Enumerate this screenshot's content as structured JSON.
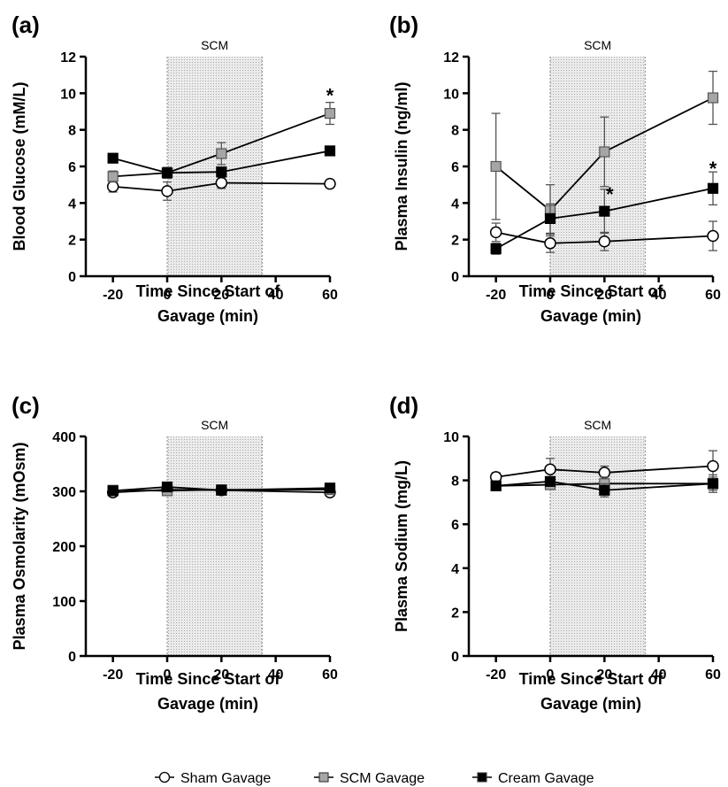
{
  "chart_data": [
    {
      "panel": "(a)",
      "type": "line",
      "ylabel": "Blood Glucose (mM/L)",
      "xlabel": [
        "Time Since Start of",
        "Gavage (min)"
      ],
      "xlim": [
        -30,
        60
      ],
      "ylim": [
        0,
        12
      ],
      "xticks": [
        -20,
        0,
        20,
        40,
        60
      ],
      "yticks": [
        0,
        2,
        4,
        6,
        8,
        10,
        12
      ],
      "shaded_region": {
        "label": "SCM",
        "x": [
          0,
          35
        ]
      },
      "x": [
        -20,
        0,
        20,
        60
      ],
      "series": [
        {
          "name": "Sham Gavage",
          "values": [
            4.9,
            4.65,
            5.1,
            5.05
          ],
          "err": [
            0.3,
            0.5,
            0.3,
            0.2
          ]
        },
        {
          "name": "SCM Gavage",
          "values": [
            5.45,
            5.65,
            6.7,
            8.9
          ],
          "err": [
            0.3,
            0.3,
            0.6,
            0.6
          ]
        },
        {
          "name": "Cream Gavage",
          "values": [
            6.45,
            5.65,
            5.7,
            6.85
          ],
          "err": [
            0.2,
            0.2,
            0.2,
            0.2
          ]
        }
      ],
      "annotations": [
        {
          "text": "*",
          "x": 60,
          "y": 9.9
        }
      ]
    },
    {
      "panel": "(b)",
      "type": "line",
      "ylabel": "Plasma Insulin (ng/ml)",
      "xlabel": [
        "Time Since Start of",
        "Gavage (min)"
      ],
      "xlim": [
        -30,
        60
      ],
      "ylim": [
        0,
        12
      ],
      "xticks": [
        -20,
        0,
        20,
        40,
        60
      ],
      "yticks": [
        0,
        2,
        4,
        6,
        8,
        10,
        12
      ],
      "shaded_region": {
        "label": "SCM",
        "x": [
          0,
          35
        ]
      },
      "x": [
        -20,
        0,
        20,
        60
      ],
      "series": [
        {
          "name": "Sham Gavage",
          "values": [
            2.4,
            1.8,
            1.9,
            2.2
          ],
          "err": [
            0.5,
            0.5,
            0.5,
            0.8
          ]
        },
        {
          "name": "SCM Gavage",
          "values": [
            6.0,
            3.6,
            6.8,
            9.75
          ],
          "err": [
            2.9,
            1.4,
            1.9,
            1.45
          ]
        },
        {
          "name": "Cream Gavage",
          "values": [
            1.5,
            3.15,
            3.55,
            4.8
          ],
          "err": [
            0.3,
            0.8,
            1.2,
            0.9
          ]
        }
      ],
      "annotations": [
        {
          "text": "*",
          "x": 22,
          "y": 4.5
        },
        {
          "text": "*",
          "x": 60,
          "y": 5.9
        }
      ]
    },
    {
      "panel": "(c)",
      "type": "line",
      "ylabel": "Plasma Osmolarity (mOsm)",
      "xlabel": [
        "Time Since Start of",
        "Gavage (min)"
      ],
      "xlim": [
        -30,
        60
      ],
      "ylim": [
        0,
        400
      ],
      "xticks": [
        -20,
        0,
        20,
        40,
        60
      ],
      "yticks": [
        0,
        100,
        200,
        300,
        400
      ],
      "shaded_region": {
        "label": "SCM",
        "x": [
          0,
          35
        ]
      },
      "x": [
        -20,
        0,
        20,
        60
      ],
      "series": [
        {
          "name": "Sham Gavage",
          "values": [
            298,
            303,
            302,
            298
          ],
          "err": [
            4,
            4,
            4,
            4
          ]
        },
        {
          "name": "SCM Gavage",
          "values": [
            302,
            301,
            303,
            303
          ],
          "err": [
            4,
            4,
            4,
            4
          ]
        },
        {
          "name": "Cream Gavage",
          "values": [
            301,
            308,
            302,
            306
          ],
          "err": [
            4,
            4,
            4,
            4
          ]
        }
      ],
      "annotations": []
    },
    {
      "panel": "(d)",
      "type": "line",
      "ylabel": "Plasma Sodium (mg/L)",
      "xlabel": [
        "Time Since Start of",
        "Gavage (min)"
      ],
      "xlim": [
        -30,
        60
      ],
      "ylim": [
        0,
        10
      ],
      "xticks": [
        -20,
        0,
        20,
        40,
        60
      ],
      "yticks": [
        0,
        2,
        4,
        6,
        8,
        10
      ],
      "shaded_region": {
        "label": "SCM",
        "x": [
          0,
          35
        ]
      },
      "x": [
        -20,
        0,
        20,
        60
      ],
      "series": [
        {
          "name": "Sham Gavage",
          "values": [
            8.15,
            8.5,
            8.35,
            8.65
          ],
          "err": [
            0.2,
            0.5,
            0.3,
            0.7
          ]
        },
        {
          "name": "SCM Gavage",
          "values": [
            7.75,
            7.8,
            7.85,
            7.85
          ],
          "err": [
            0.2,
            0.2,
            0.3,
            0.3
          ]
        },
        {
          "name": "Cream Gavage",
          "values": [
            7.75,
            7.95,
            7.55,
            7.85
          ],
          "err": [
            0.2,
            0.2,
            0.3,
            0.4
          ]
        }
      ],
      "annotations": []
    }
  ],
  "legend": [
    {
      "name": "Sham Gavage",
      "marker": "circle",
      "fill": "#ffffff"
    },
    {
      "name": "SCM Gavage",
      "marker": "square",
      "fill": "#a6a6a6"
    },
    {
      "name": "Cream Gavage",
      "marker": "square",
      "fill": "#000000"
    }
  ],
  "colors": {
    "sham_fill": "#ffffff",
    "scm_fill": "#a6a6a6",
    "cream_fill": "#000000",
    "shade": "#e6e6e6",
    "line": "#000000"
  }
}
